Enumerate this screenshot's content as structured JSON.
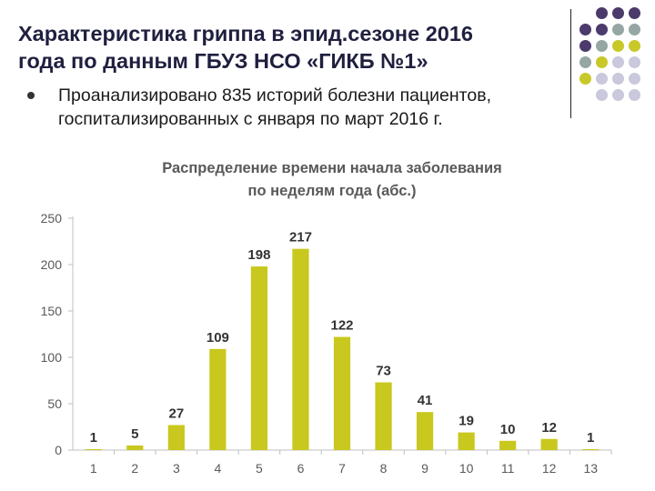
{
  "slide": {
    "title_line1": "Характеристика гриппа в эпид.сезоне 2016",
    "title_line2": "года по данным ГБУЗ НСО «ГИКБ №1»",
    "bullet_line1": "Проанализировано 835 историй болезни пациентов,",
    "bullet_line2": "госпитализированных с января по март 2016 г."
  },
  "decoration": {
    "dot_colors": {
      "purple": "#4b3a6b",
      "teal": "#95a6a4",
      "yellow": "#c8c829",
      "lavender": "#c9c8dc"
    },
    "dot_pattern": [
      [
        "",
        "purple",
        "purple",
        "purple"
      ],
      [
        "purple",
        "purple",
        "teal",
        "teal"
      ],
      [
        "purple",
        "teal",
        "yellow",
        "yellow"
      ],
      [
        "teal",
        "yellow",
        "lavender",
        "lavender"
      ],
      [
        "yellow",
        "lavender",
        "lavender",
        "lavender"
      ],
      [
        "",
        "lavender",
        "lavender",
        "lavender"
      ]
    ]
  },
  "chart_data": {
    "type": "bar",
    "title_line1": "Распределение времени начала заболевания",
    "title_line2": "по неделям года (абс.)",
    "categories": [
      "1",
      "2",
      "3",
      "4",
      "5",
      "6",
      "7",
      "8",
      "9",
      "10",
      "11",
      "12",
      "13"
    ],
    "values": [
      1,
      5,
      27,
      109,
      198,
      217,
      122,
      73,
      41,
      19,
      10,
      12,
      1
    ],
    "yticks": [
      0,
      50,
      100,
      150,
      200,
      250
    ],
    "ylim": [
      0,
      250
    ],
    "grid": false,
    "legend": "none",
    "bar_color": "#c8c81e",
    "axis_color": "#bfbfbf",
    "label_color": "#595959"
  }
}
